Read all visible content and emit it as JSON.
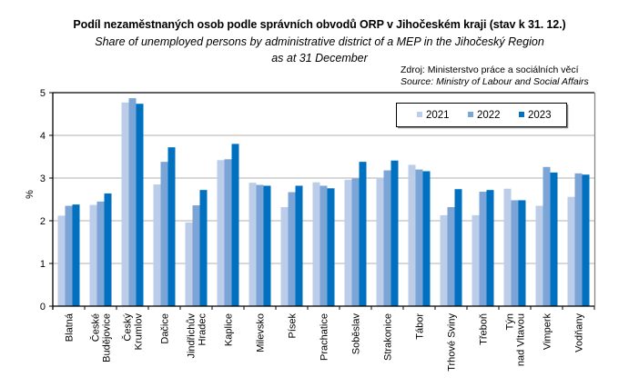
{
  "chart_data": {
    "type": "bar",
    "title": "Podíl nezaměstnaných osob podle správních obvodů ORP v Jihočeském kraji (stav k 31. 12.)",
    "subtitle_line1": "Share of unemployed persons by administrative district of a MEP in the Jihočeský Region",
    "subtitle_line2": "as at 31 December",
    "source_cz": "Zdroj: Ministerstvo práce a sociálních věcí",
    "source_en": "Source: Ministry of Labour and Social Affairs",
    "xlabel": "",
    "ylabel": "%",
    "ylim": [
      0,
      5
    ],
    "yticks": [
      "0",
      "1",
      "2",
      "3",
      "4",
      "5"
    ],
    "grid": true,
    "legend_position": "top-right",
    "categories": [
      [
        "Blatná"
      ],
      [
        "České",
        "Budějovice"
      ],
      [
        "Český",
        "Krumlov"
      ],
      [
        "Dačice"
      ],
      [
        "Jindřichův",
        "Hradec"
      ],
      [
        "Kaplice"
      ],
      [
        "Milevsko"
      ],
      [
        "Písek"
      ],
      [
        "Prachatice"
      ],
      [
        "Soběslav"
      ],
      [
        "Strakonice"
      ],
      [
        "Tábor"
      ],
      [
        "Trhové Sviny"
      ],
      [
        "Třeboň"
      ],
      [
        "Týn",
        "nad Vltavou"
      ],
      [
        "Vimperk"
      ],
      [
        "Vodňany"
      ]
    ],
    "series": [
      {
        "name": "2021",
        "color": "#bccde9",
        "values": [
          2.12,
          2.37,
          4.77,
          2.85,
          1.96,
          3.42,
          2.89,
          2.32,
          2.9,
          2.96,
          3.01,
          3.31,
          2.13,
          2.13,
          2.75,
          2.35,
          2.56
        ]
      },
      {
        "name": "2022",
        "color": "#7aa5d6",
        "values": [
          2.35,
          2.45,
          4.87,
          3.38,
          2.36,
          3.44,
          2.84,
          2.67,
          2.82,
          2.99,
          3.18,
          3.2,
          2.32,
          2.68,
          2.48,
          3.26,
          3.11
        ]
      },
      {
        "name": "2023",
        "color": "#0070c0",
        "values": [
          2.38,
          2.64,
          4.74,
          3.72,
          2.72,
          3.8,
          2.82,
          2.82,
          2.76,
          3.38,
          3.41,
          3.16,
          2.74,
          2.72,
          2.48,
          3.13,
          3.08
        ]
      }
    ]
  }
}
